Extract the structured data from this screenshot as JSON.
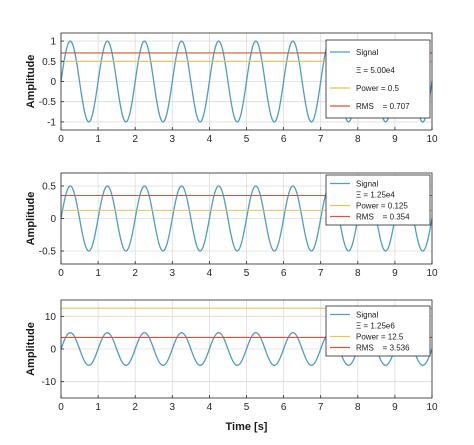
{
  "chart_data": [
    {
      "type": "line",
      "ylabel": "Amplitude",
      "xlim": [
        0,
        10
      ],
      "ylim": [
        -1.2,
        1.2
      ],
      "yticks": [
        -1,
        -0.5,
        0,
        0.5,
        1
      ],
      "xticks": [
        0,
        1,
        2,
        3,
        4,
        5,
        6,
        7,
        8,
        9,
        10
      ],
      "grid": true,
      "legend_position": "top-right",
      "series": [
        {
          "name": "Signal",
          "kind": "sine",
          "amplitude": 1,
          "frequency_hz": 1,
          "color": "#4d9dc2"
        },
        {
          "name": "Power",
          "kind": "constant",
          "value": 0.5,
          "color": "#e3c55a"
        },
        {
          "name": "RMS",
          "kind": "constant",
          "value": 0.707,
          "color": "#d0583b"
        }
      ],
      "legend": [
        {
          "label": "Signal",
          "color": "#4d9dc2"
        },
        {
          "label": "Ξ = 5.00e4",
          "color": null
        },
        {
          "label": "Power = 0.5",
          "color": "#e3c55a"
        },
        {
          "label": "RMS    = 0.707",
          "color": "#d0583b"
        }
      ]
    },
    {
      "type": "line",
      "ylabel": "Amplitude",
      "xlim": [
        0,
        10
      ],
      "ylim": [
        -0.7,
        0.7
      ],
      "yticks": [
        -0.5,
        0,
        0.5
      ],
      "xticks": [
        0,
        1,
        2,
        3,
        4,
        5,
        6,
        7,
        8,
        9,
        10
      ],
      "grid": true,
      "legend_position": "top-right",
      "series": [
        {
          "name": "Signal",
          "kind": "sine",
          "amplitude": 0.5,
          "frequency_hz": 1,
          "color": "#4d9dc2"
        },
        {
          "name": "Power",
          "kind": "constant",
          "value": 0.125,
          "color": "#e3c55a"
        },
        {
          "name": "RMS",
          "kind": "constant",
          "value": 0.354,
          "color": "#d0583b"
        }
      ],
      "legend": [
        {
          "label": "Signal",
          "color": "#4d9dc2"
        },
        {
          "label": "Ξ = 1.25e4",
          "color": null
        },
        {
          "label": "Power = 0.125",
          "color": "#e3c55a"
        },
        {
          "label": "RMS    = 0.354",
          "color": "#d0583b"
        }
      ]
    },
    {
      "type": "line",
      "ylabel": "Amplitude",
      "xlabel": "Time [s]",
      "xlim": [
        0,
        10
      ],
      "ylim": [
        -15,
        15
      ],
      "yticks": [
        -10,
        0,
        10
      ],
      "xticks": [
        0,
        1,
        2,
        3,
        4,
        5,
        6,
        7,
        8,
        9,
        10
      ],
      "grid": true,
      "legend_position": "top-right",
      "series": [
        {
          "name": "Signal",
          "kind": "sine",
          "amplitude": 5,
          "frequency_hz": 1,
          "color": "#4d9dc2"
        },
        {
          "name": "Power",
          "kind": "constant",
          "value": 12.5,
          "color": "#e3c55a"
        },
        {
          "name": "RMS",
          "kind": "constant",
          "value": 3.536,
          "color": "#d0583b"
        }
      ],
      "legend": [
        {
          "label": "Signal",
          "color": "#4d9dc2"
        },
        {
          "label": "Ξ = 1.25e6",
          "color": null
        },
        {
          "label": "Power = 12.5",
          "color": "#e3c55a"
        },
        {
          "label": "RMS    = 3.536",
          "color": "#d0583b"
        }
      ]
    }
  ]
}
